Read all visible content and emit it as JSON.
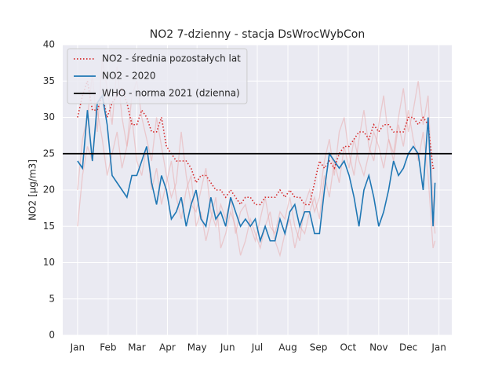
{
  "chart_data": {
    "type": "line",
    "title": "NO2 7-dzienny - stacja DsWrocWybCon",
    "y_label": "NO2 [µg/m3]",
    "x": [
      1,
      6,
      11,
      16,
      21,
      26,
      31,
      36,
      41,
      46,
      51,
      56,
      61,
      66,
      71,
      76,
      81,
      86,
      91,
      96,
      101,
      106,
      111,
      116,
      121,
      126,
      131,
      136,
      141,
      146,
      151,
      156,
      161,
      166,
      171,
      176,
      181,
      186,
      191,
      196,
      201,
      206,
      211,
      216,
      221,
      226,
      231,
      236,
      241,
      246,
      251,
      256,
      261,
      266,
      271,
      276,
      281,
      286,
      291,
      296,
      301,
      306,
      311,
      316,
      321,
      326,
      331,
      336,
      341,
      346,
      351,
      356,
      361,
      363
    ],
    "xlim": [
      -14,
      380
    ],
    "xticks": [
      {
        "value": 1,
        "label": "Jan"
      },
      {
        "value": 32,
        "label": "Feb"
      },
      {
        "value": 61,
        "label": "Mar"
      },
      {
        "value": 92,
        "label": "Apr"
      },
      {
        "value": 122,
        "label": "May"
      },
      {
        "value": 153,
        "label": "Jun"
      },
      {
        "value": 183,
        "label": "Jul"
      },
      {
        "value": 214,
        "label": "Aug"
      },
      {
        "value": 245,
        "label": "Sep"
      },
      {
        "value": 275,
        "label": "Oct"
      },
      {
        "value": 306,
        "label": "Nov"
      },
      {
        "value": 336,
        "label": "Dec"
      },
      {
        "value": 367,
        "label": "Jan"
      }
    ],
    "ylim": [
      0,
      40
    ],
    "yticks": [
      0,
      5,
      10,
      15,
      20,
      25,
      30,
      35,
      40
    ],
    "grid": true,
    "legend": "upper left",
    "series": [
      {
        "color": "#e8a0a0",
        "values": [
          20,
          27,
          30,
          36,
          28,
          38,
          34,
          29,
          37,
          30,
          26,
          33,
          35,
          30,
          27,
          24,
          30,
          26,
          22,
          19,
          21,
          28,
          22,
          18,
          17,
          20,
          23,
          17,
          15,
          18,
          16,
          19,
          14,
          17,
          18,
          15,
          13,
          16,
          19,
          15,
          14,
          17,
          16,
          19,
          15,
          13,
          18,
          20,
          17,
          19,
          24,
          27,
          22,
          28,
          30,
          25,
          22,
          27,
          31,
          26,
          24,
          29,
          33,
          27,
          25,
          30,
          34,
          28,
          31,
          35,
          29,
          33,
          18,
          14
        ]
      },
      {
        "color": "#e8a0a0",
        "values": [
          15,
          22,
          26,
          24,
          31,
          27,
          22,
          25,
          28,
          23,
          26,
          30,
          24,
          22,
          26,
          20,
          23,
          18,
          21,
          24,
          19,
          16,
          20,
          22,
          15,
          17,
          13,
          16,
          19,
          12,
          14,
          17,
          15,
          11,
          13,
          16,
          14,
          12,
          15,
          17,
          13,
          11,
          14,
          16,
          12,
          15,
          14,
          17,
          19,
          16,
          22,
          19,
          24,
          21,
          26,
          23,
          27,
          24,
          22,
          25,
          28,
          26,
          23,
          27,
          24,
          29,
          26,
          31,
          27,
          24,
          28,
          22,
          12,
          13
        ]
      },
      {
        "name": "NO2 - średnia pozostałych lat",
        "color": "#d62728",
        "dash": "dotted",
        "values": [
          30,
          33,
          35,
          31,
          31,
          33,
          30,
          32,
          33,
          34,
          32,
          29,
          29,
          31,
          30,
          28,
          28,
          30,
          26,
          25,
          24,
          24,
          24,
          23,
          21,
          22,
          22,
          21,
          20,
          20,
          19,
          20,
          19,
          18,
          19,
          19,
          18,
          18,
          19,
          19,
          19,
          20,
          19,
          20,
          19,
          19,
          18,
          18,
          21,
          24,
          23,
          24,
          23,
          25,
          26,
          26,
          27,
          28,
          28,
          27,
          29,
          28,
          29,
          29,
          28,
          28,
          28,
          30,
          30,
          29,
          30,
          29,
          23,
          23
        ]
      },
      {
        "name": "NO2 - 2020",
        "color": "#1f77b4",
        "values": [
          24,
          23,
          31,
          24,
          32,
          33,
          29,
          22,
          21,
          20,
          19,
          22,
          22,
          24,
          26,
          21,
          18,
          22,
          20,
          16,
          17,
          19,
          15,
          18,
          20,
          16,
          15,
          19,
          16,
          17,
          15,
          19,
          17,
          15,
          16,
          15,
          16,
          13,
          15,
          13,
          13,
          16,
          14,
          17,
          18,
          15,
          17,
          17,
          14,
          14,
          20,
          25,
          24,
          23,
          24,
          22,
          19,
          15,
          20,
          22,
          19,
          15,
          17,
          20,
          24,
          22,
          23,
          25,
          26,
          25,
          20,
          30,
          15,
          21
        ]
      }
    ],
    "reference_lines": [
      {
        "name": "WHO - norma 2021 (dzienna)",
        "value": 25,
        "color": "#000000"
      }
    ]
  }
}
